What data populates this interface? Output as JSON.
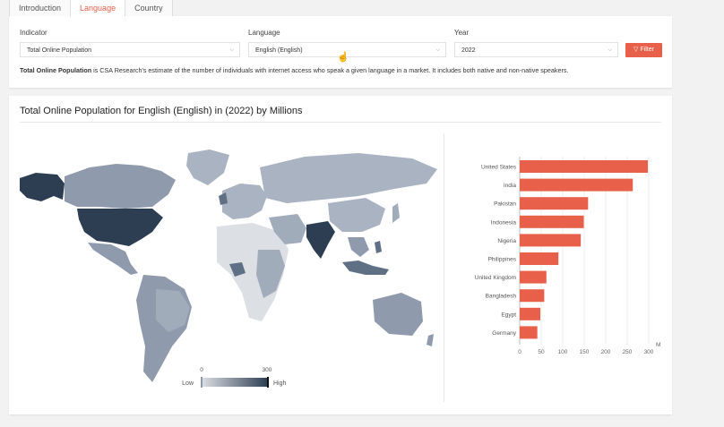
{
  "tabs": [
    {
      "label": "Introduction",
      "active": false
    },
    {
      "label": "Language",
      "active": true
    },
    {
      "label": "Country",
      "active": false
    }
  ],
  "filters": {
    "indicator_label": "Indicator",
    "indicator_value": "Total Online Population",
    "language_label": "Language",
    "language_value": "English (English)",
    "year_label": "Year",
    "year_value": "2022",
    "filter_button": "Filter"
  },
  "description": {
    "bold": "Total Online Population",
    "rest": " is CSA Research's estimate of the number of individuals with internet access who speak a given language in a market. It includes both native and non-native speakers."
  },
  "chart_title": "Total Online Population for English (English) in (2022) by Millions",
  "colors": {
    "accent": "#e8604a",
    "bar": "#e8604a",
    "map_low": "#dcdfe4",
    "map_high": "#2e3e52"
  },
  "legend": {
    "min": "0",
    "max": "300",
    "low_label": "Low",
    "high_label": "High"
  },
  "chart_data": {
    "type": "bar",
    "orientation": "horizontal",
    "categories": [
      "United States",
      "India",
      "Pakistan",
      "Indonesia",
      "Nigeria",
      "Philippines",
      "United Kingdom",
      "Bangladesh",
      "Egypt",
      "Germany"
    ],
    "values": [
      298,
      263,
      159,
      149,
      142,
      90,
      62,
      57,
      48,
      41
    ],
    "xlim": [
      0,
      300
    ],
    "xticks": [
      "0",
      "50",
      "100",
      "150",
      "200",
      "250",
      "300"
    ],
    "unit_label": "M"
  }
}
